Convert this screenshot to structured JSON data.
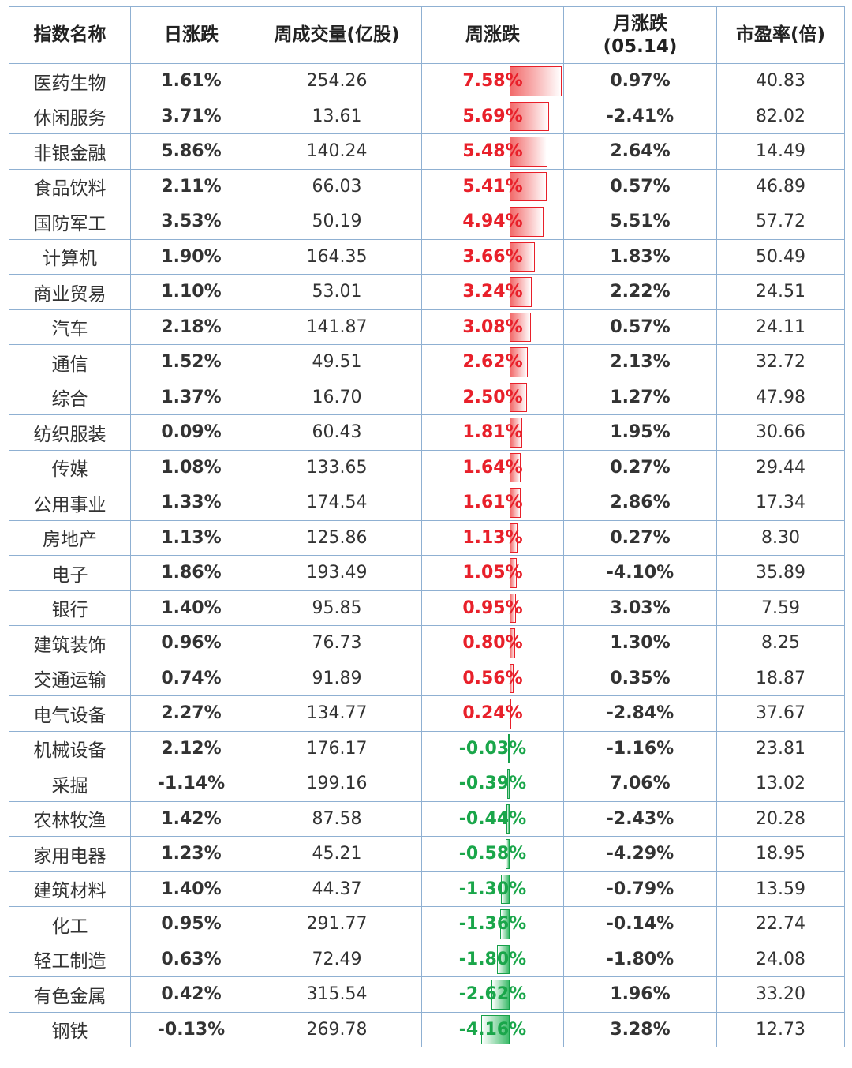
{
  "headers": {
    "name": "指数名称",
    "daily": "日涨跌",
    "volume": "周成交量(亿股)",
    "weekly": "周涨跌",
    "monthly_line1": "月涨跌",
    "monthly_line2": "(05.14)",
    "pe": "市盈率(倍)"
  },
  "colors": {
    "up": "#e8202a",
    "down": "#1aa64a",
    "border": "#8fb0d2"
  },
  "rows": [
    {
      "name": "医药生物",
      "daily": "1.61%",
      "volume": "254.26",
      "weekly": "7.58%",
      "weekly_value": 7.58,
      "monthly": "0.97%",
      "pe": "40.83"
    },
    {
      "name": "休闲服务",
      "daily": "3.71%",
      "volume": "13.61",
      "weekly": "5.69%",
      "weekly_value": 5.69,
      "monthly": "-2.41%",
      "pe": "82.02"
    },
    {
      "name": "非银金融",
      "daily": "5.86%",
      "volume": "140.24",
      "weekly": "5.48%",
      "weekly_value": 5.48,
      "monthly": "2.64%",
      "pe": "14.49"
    },
    {
      "name": "食品饮料",
      "daily": "2.11%",
      "volume": "66.03",
      "weekly": "5.41%",
      "weekly_value": 5.41,
      "monthly": "0.57%",
      "pe": "46.89"
    },
    {
      "name": "国防军工",
      "daily": "3.53%",
      "volume": "50.19",
      "weekly": "4.94%",
      "weekly_value": 4.94,
      "monthly": "5.51%",
      "pe": "57.72"
    },
    {
      "name": "计算机",
      "daily": "1.90%",
      "volume": "164.35",
      "weekly": "3.66%",
      "weekly_value": 3.66,
      "monthly": "1.83%",
      "pe": "50.49"
    },
    {
      "name": "商业贸易",
      "daily": "1.10%",
      "volume": "53.01",
      "weekly": "3.24%",
      "weekly_value": 3.24,
      "monthly": "2.22%",
      "pe": "24.51"
    },
    {
      "name": "汽车",
      "daily": "2.18%",
      "volume": "141.87",
      "weekly": "3.08%",
      "weekly_value": 3.08,
      "monthly": "0.57%",
      "pe": "24.11"
    },
    {
      "name": "通信",
      "daily": "1.52%",
      "volume": "49.51",
      "weekly": "2.62%",
      "weekly_value": 2.62,
      "monthly": "2.13%",
      "pe": "32.72"
    },
    {
      "name": "综合",
      "daily": "1.37%",
      "volume": "16.70",
      "weekly": "2.50%",
      "weekly_value": 2.5,
      "monthly": "1.27%",
      "pe": "47.98"
    },
    {
      "name": "纺织服装",
      "daily": "0.09%",
      "volume": "60.43",
      "weekly": "1.81%",
      "weekly_value": 1.81,
      "monthly": "1.95%",
      "pe": "30.66"
    },
    {
      "name": "传媒",
      "daily": "1.08%",
      "volume": "133.65",
      "weekly": "1.64%",
      "weekly_value": 1.64,
      "monthly": "0.27%",
      "pe": "29.44"
    },
    {
      "name": "公用事业",
      "daily": "1.33%",
      "volume": "174.54",
      "weekly": "1.61%",
      "weekly_value": 1.61,
      "monthly": "2.86%",
      "pe": "17.34"
    },
    {
      "name": "房地产",
      "daily": "1.13%",
      "volume": "125.86",
      "weekly": "1.13%",
      "weekly_value": 1.13,
      "monthly": "0.27%",
      "pe": "8.30"
    },
    {
      "name": "电子",
      "daily": "1.86%",
      "volume": "193.49",
      "weekly": "1.05%",
      "weekly_value": 1.05,
      "monthly": "-4.10%",
      "pe": "35.89"
    },
    {
      "name": "银行",
      "daily": "1.40%",
      "volume": "95.85",
      "weekly": "0.95%",
      "weekly_value": 0.95,
      "monthly": "3.03%",
      "pe": "7.59"
    },
    {
      "name": "建筑装饰",
      "daily": "0.96%",
      "volume": "76.73",
      "weekly": "0.80%",
      "weekly_value": 0.8,
      "monthly": "1.30%",
      "pe": "8.25"
    },
    {
      "name": "交通运输",
      "daily": "0.74%",
      "volume": "91.89",
      "weekly": "0.56%",
      "weekly_value": 0.56,
      "monthly": "0.35%",
      "pe": "18.87"
    },
    {
      "name": "电气设备",
      "daily": "2.27%",
      "volume": "134.77",
      "weekly": "0.24%",
      "weekly_value": 0.24,
      "monthly": "-2.84%",
      "pe": "37.67"
    },
    {
      "name": "机械设备",
      "daily": "2.12%",
      "volume": "176.17",
      "weekly": "-0.03%",
      "weekly_value": -0.03,
      "monthly": "-1.16%",
      "pe": "23.81"
    },
    {
      "name": "采掘",
      "daily": "-1.14%",
      "volume": "199.16",
      "weekly": "-0.39%",
      "weekly_value": -0.39,
      "monthly": "7.06%",
      "pe": "13.02"
    },
    {
      "name": "农林牧渔",
      "daily": "1.42%",
      "volume": "87.58",
      "weekly": "-0.44%",
      "weekly_value": -0.44,
      "monthly": "-2.43%",
      "pe": "20.28"
    },
    {
      "name": "家用电器",
      "daily": "1.23%",
      "volume": "45.21",
      "weekly": "-0.58%",
      "weekly_value": -0.58,
      "monthly": "-4.29%",
      "pe": "18.95"
    },
    {
      "name": "建筑材料",
      "daily": "1.40%",
      "volume": "44.37",
      "weekly": "-1.30%",
      "weekly_value": -1.3,
      "monthly": "-0.79%",
      "pe": "13.59"
    },
    {
      "name": "化工",
      "daily": "0.95%",
      "volume": "291.77",
      "weekly": "-1.36%",
      "weekly_value": -1.36,
      "monthly": "-0.14%",
      "pe": "22.74"
    },
    {
      "name": "轻工制造",
      "daily": "0.63%",
      "volume": "72.49",
      "weekly": "-1.80%",
      "weekly_value": -1.8,
      "monthly": "-1.80%",
      "pe": "24.08"
    },
    {
      "name": "有色金属",
      "daily": "0.42%",
      "volume": "315.54",
      "weekly": "-2.62%",
      "weekly_value": -2.62,
      "monthly": "1.96%",
      "pe": "33.20"
    },
    {
      "name": "钢铁",
      "daily": "-0.13%",
      "volume": "269.78",
      "weekly": "-4.16%",
      "weekly_value": -4.16,
      "monthly": "3.28%",
      "pe": "12.73"
    }
  ]
}
